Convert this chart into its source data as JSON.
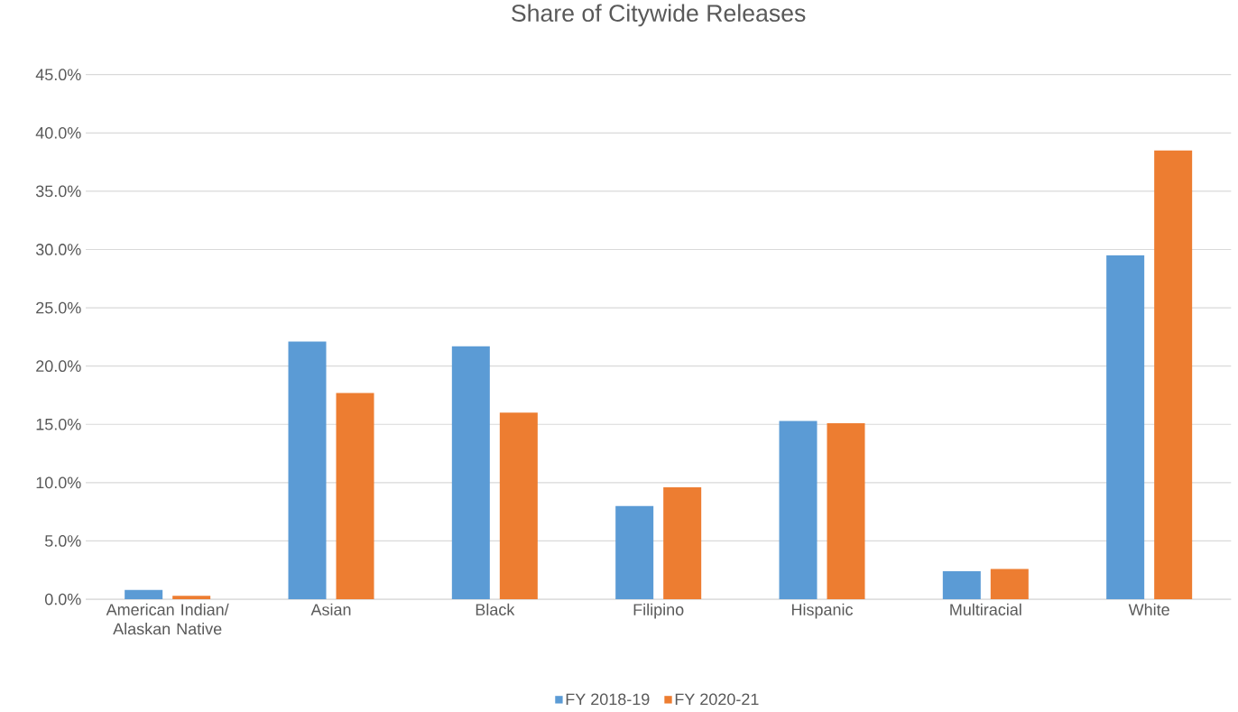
{
  "chart_data": {
    "type": "bar",
    "title": "Share of Citywide Releases",
    "categories": [
      "American Indian/ Alaskan Native",
      "Asian",
      "Black",
      "Filipino",
      "Hispanic",
      "Multiracial",
      "White"
    ],
    "series": [
      {
        "name": "FY 2018-19",
        "color": "#5b9bd5",
        "values": [
          0.8,
          22.1,
          21.7,
          8.0,
          15.3,
          2.4,
          29.5
        ]
      },
      {
        "name": "FY 2020-21",
        "color": "#ed7d31",
        "values": [
          0.3,
          17.7,
          16.0,
          9.6,
          15.1,
          2.6,
          38.5
        ]
      }
    ],
    "ylim": [
      0,
      45
    ],
    "yticks": [
      {
        "value": 0,
        "label": "0.0%"
      },
      {
        "value": 5,
        "label": "5.0%"
      },
      {
        "value": 10,
        "label": "10.0%"
      },
      {
        "value": 15,
        "label": "15.0%"
      },
      {
        "value": 20,
        "label": "20.0%"
      },
      {
        "value": 25,
        "label": "25.0%"
      },
      {
        "value": 30,
        "label": "30.0%"
      },
      {
        "value": 35,
        "label": "35.0%"
      },
      {
        "value": 40,
        "label": "40.0%"
      },
      {
        "value": 45,
        "label": "45.0%"
      }
    ],
    "grid": "y",
    "legend": "bottom"
  }
}
